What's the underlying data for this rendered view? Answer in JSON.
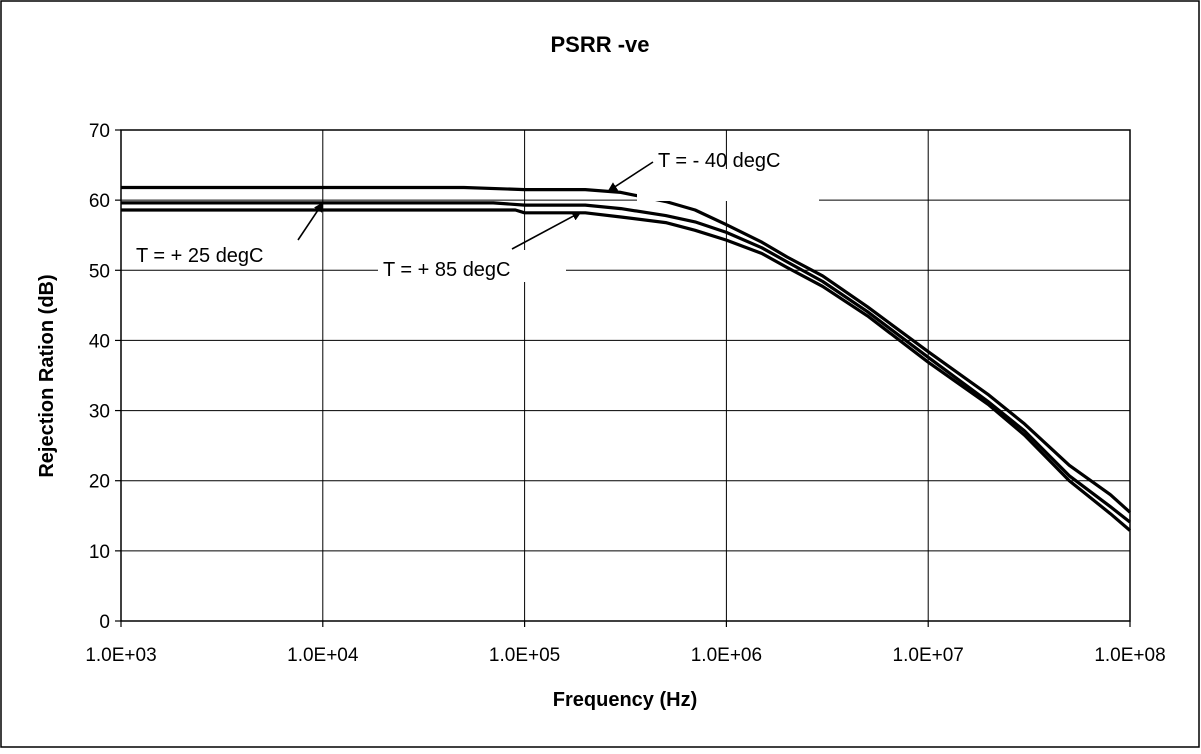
{
  "chart_data": {
    "type": "line",
    "title": "PSRR -ve",
    "xlabel": "Frequency (Hz)",
    "ylabel": "Rejection Ration (dB)",
    "x_scale": "log",
    "xlim": [
      1000,
      100000000
    ],
    "ylim": [
      0,
      70
    ],
    "x_ticks": [
      1000,
      10000,
      100000,
      1000000,
      10000000,
      100000000
    ],
    "x_tick_labels": [
      "1.0E+03",
      "1.0E+04",
      "1.0E+05",
      "1.0E+06",
      "1.0E+07",
      "1.0E+08"
    ],
    "y_ticks": [
      0,
      10,
      20,
      30,
      40,
      50,
      60,
      70
    ],
    "y_tick_labels": [
      "0",
      "10",
      "20",
      "30",
      "40",
      "50",
      "60",
      "70"
    ],
    "grid": true,
    "legend": "none",
    "series": [
      {
        "label": "T = - 40 degC",
        "points": [
          [
            1000,
            61.8
          ],
          [
            10000,
            61.8
          ],
          [
            50000,
            61.8
          ],
          [
            100000,
            61.5
          ],
          [
            200000,
            61.5
          ],
          [
            300000,
            61.1
          ],
          [
            500000,
            59.8
          ],
          [
            700000,
            58.6
          ],
          [
            1000000,
            56.5
          ],
          [
            1500000,
            54.0
          ],
          [
            2000000,
            51.9
          ],
          [
            3000000,
            49.2
          ],
          [
            5000000,
            44.8
          ],
          [
            10000000,
            38.4
          ],
          [
            20000000,
            32.2
          ],
          [
            30000000,
            28.1
          ],
          [
            50000000,
            22.2
          ],
          [
            80000000,
            18.0
          ],
          [
            100000000,
            15.5
          ]
        ]
      },
      {
        "label": "T = + 25 degC",
        "points": [
          [
            1000,
            59.6
          ],
          [
            10000,
            59.6
          ],
          [
            70000,
            59.6
          ],
          [
            100000,
            59.3
          ],
          [
            200000,
            59.3
          ],
          [
            300000,
            58.8
          ],
          [
            500000,
            57.8
          ],
          [
            700000,
            56.9
          ],
          [
            1000000,
            55.4
          ],
          [
            1500000,
            53.2
          ],
          [
            2000000,
            51.2
          ],
          [
            3000000,
            48.4
          ],
          [
            5000000,
            44.1
          ],
          [
            10000000,
            37.6
          ],
          [
            20000000,
            31.2
          ],
          [
            30000000,
            27.1
          ],
          [
            50000000,
            20.7
          ],
          [
            80000000,
            16.3
          ],
          [
            100000000,
            14.1
          ]
        ]
      },
      {
        "label": "T = + 85 degC",
        "points": [
          [
            1000,
            58.6
          ],
          [
            10000,
            58.6
          ],
          [
            90000,
            58.6
          ],
          [
            100000,
            58.2
          ],
          [
            200000,
            58.2
          ],
          [
            300000,
            57.6
          ],
          [
            500000,
            56.8
          ],
          [
            700000,
            55.7
          ],
          [
            1000000,
            54.3
          ],
          [
            1500000,
            52.4
          ],
          [
            2000000,
            50.4
          ],
          [
            3000000,
            47.7
          ],
          [
            5000000,
            43.5
          ],
          [
            10000000,
            36.9
          ],
          [
            20000000,
            30.8
          ],
          [
            30000000,
            26.5
          ],
          [
            50000000,
            20.0
          ],
          [
            80000000,
            15.3
          ],
          [
            100000000,
            12.9
          ]
        ]
      }
    ],
    "annotations": [
      {
        "text": "T = - 40 degC",
        "target": [
          260000,
          61.3
        ]
      },
      {
        "text": "T = + 25 degC",
        "target": [
          10000,
          59.6
        ]
      },
      {
        "text": "T = + 85 degC",
        "target": [
          190000,
          58.3
        ]
      }
    ]
  },
  "colors": {
    "line": "#000000",
    "grid": "#000000",
    "background": "#ffffff"
  }
}
